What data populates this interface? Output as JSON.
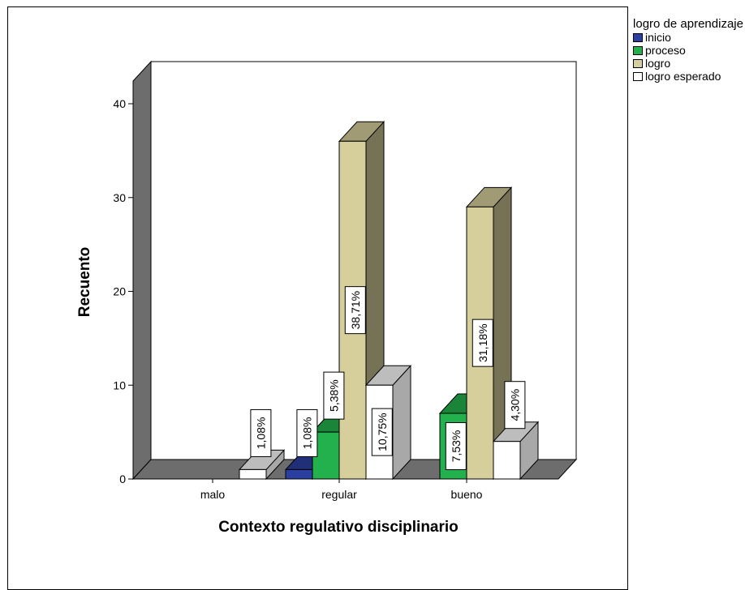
{
  "chart_data": {
    "type": "bar",
    "title": "",
    "xlabel": "Contexto regulativo disciplinario",
    "ylabel": "Recuento",
    "ylim": [
      0,
      40
    ],
    "yticks": [
      0,
      10,
      20,
      30,
      40
    ],
    "categories": [
      "malo",
      "regular",
      "bueno"
    ],
    "legend_title": "logro de aprendizaje",
    "legend_position": "right",
    "series": [
      {
        "name": "inicio",
        "color": "#2a3f9f",
        "values": [
          0,
          1,
          0
        ],
        "labels": [
          "",
          "1,08%",
          ""
        ]
      },
      {
        "name": "proceso",
        "color": "#22b14c",
        "values": [
          0,
          5,
          7
        ],
        "labels": [
          "",
          "5,38%",
          "7,53%"
        ]
      },
      {
        "name": "logro",
        "color": "#d6cf9c",
        "values": [
          0,
          36,
          29
        ],
        "labels": [
          "",
          "38,71%",
          "31,18%"
        ]
      },
      {
        "name": "logro esperado",
        "color": "#ffffff",
        "values": [
          1,
          10,
          4
        ],
        "labels": [
          "1,08%",
          "10,75%",
          "4,30%"
        ]
      }
    ]
  }
}
